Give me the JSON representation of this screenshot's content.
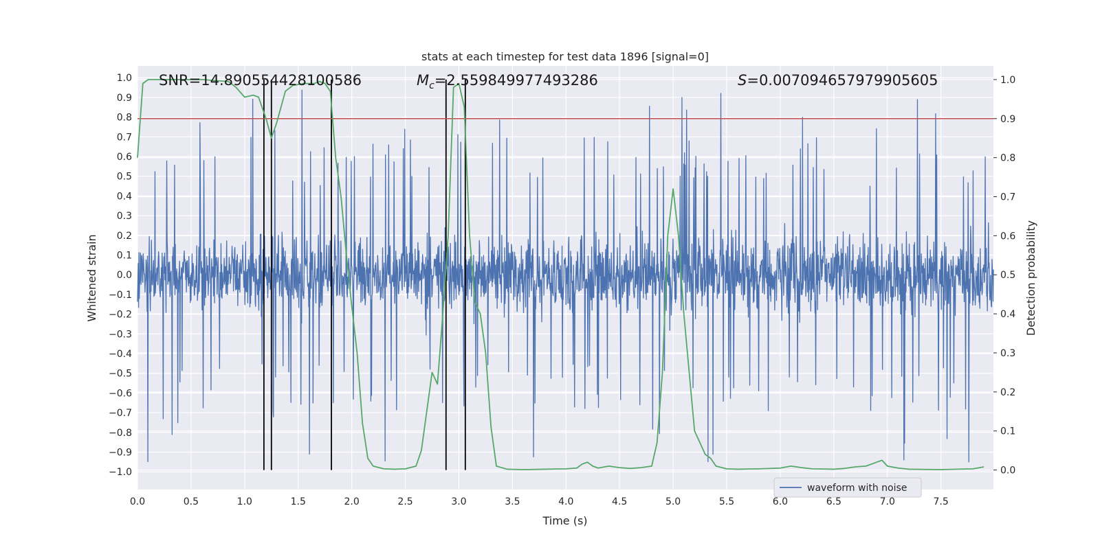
{
  "chart_data": {
    "type": "line",
    "title": "stats at each timestep for test data 1896 [signal=0]",
    "xlabel": "Time (s)",
    "ylabel_left": "Whitened strain",
    "ylabel_right": "Detection probability",
    "xlim": [
      0.0,
      7.99
    ],
    "ylim_left": [
      -1.09,
      1.06
    ],
    "ylim_right": [
      -0.05,
      1.035
    ],
    "x_ticks": [
      "0.0",
      "0.5",
      "1.0",
      "1.5",
      "2.0",
      "2.5",
      "3.0",
      "3.5",
      "4.0",
      "4.5",
      "5.0",
      "5.5",
      "6.0",
      "6.5",
      "7.0",
      "7.5"
    ],
    "y_ticks_left": [
      "1.0",
      "0.9",
      "0.8",
      "0.7",
      "0.6",
      "0.5",
      "0.4",
      "0.3",
      "0.2",
      "0.1",
      "0.0",
      "-0.1",
      "-0.2",
      "-0.3",
      "-0.4",
      "-0.5",
      "-0.6",
      "-0.7",
      "-0.8",
      "-0.9",
      "-1.0"
    ],
    "y_ticks_right": [
      "1.0",
      "0.9",
      "0.8",
      "0.7",
      "0.6",
      "0.5",
      "0.4",
      "0.3",
      "0.2",
      "0.1",
      "0.0"
    ],
    "annotations": {
      "snr": "SNR=14.890554428100586",
      "mc_symbol": "M",
      "mc_sub": "c",
      "mc_value": "=2.559849977493286",
      "s_symbol": "S",
      "s_value": "=0.007094657979905605"
    },
    "threshold": 0.9,
    "threshold_color": "#c44e52",
    "event_lines": [
      1.18,
      1.25,
      1.81,
      2.88,
      3.06
    ],
    "series": [
      {
        "name": "waveform with noise",
        "axis": "left",
        "color": "#4c72b0",
        "description": "noisy whitened strain, approx. band ±0.45 with spikes to ±0.95",
        "typical_amplitude": 0.45,
        "max_amplitude": 0.96
      },
      {
        "name": "detection probability",
        "axis": "right",
        "color": "#55a868",
        "x": [
          0.0,
          0.05,
          0.1,
          0.2,
          0.4,
          0.6,
          0.85,
          0.92,
          1.0,
          1.08,
          1.13,
          1.2,
          1.25,
          1.3,
          1.38,
          1.45,
          1.55,
          1.65,
          1.7,
          1.75,
          1.8,
          1.85,
          1.9,
          1.95,
          2.0,
          2.05,
          2.1,
          2.15,
          2.2,
          2.3,
          2.4,
          2.5,
          2.6,
          2.65,
          2.7,
          2.75,
          2.8,
          2.85,
          2.9,
          2.95,
          3.0,
          3.05,
          3.1,
          3.15,
          3.2,
          3.25,
          3.3,
          3.35,
          3.45,
          3.6,
          3.8,
          4.0,
          4.1,
          4.15,
          4.2,
          4.25,
          4.3,
          4.4,
          4.5,
          4.6,
          4.7,
          4.8,
          4.85,
          4.9,
          4.95,
          5.0,
          5.05,
          5.1,
          5.15,
          5.2,
          5.3,
          5.35,
          5.4,
          5.5,
          5.6,
          5.8,
          6.0,
          6.1,
          6.2,
          6.3,
          6.5,
          6.6,
          6.7,
          6.8,
          6.9,
          6.95,
          7.0,
          7.1,
          7.2,
          7.5,
          7.8,
          7.9
        ],
        "y": [
          0.8,
          0.99,
          1.0,
          1.0,
          1.0,
          1.0,
          0.995,
          0.98,
          0.955,
          0.96,
          0.955,
          0.9,
          0.85,
          0.89,
          0.97,
          0.985,
          0.99,
          0.99,
          0.995,
          0.99,
          0.97,
          0.8,
          0.7,
          0.55,
          0.42,
          0.3,
          0.12,
          0.03,
          0.01,
          0.003,
          0.002,
          0.003,
          0.01,
          0.05,
          0.15,
          0.25,
          0.22,
          0.4,
          0.6,
          0.98,
          0.99,
          0.93,
          0.6,
          0.43,
          0.4,
          0.3,
          0.11,
          0.01,
          0.002,
          0.001,
          0.002,
          0.003,
          0.005,
          0.015,
          0.02,
          0.01,
          0.005,
          0.01,
          0.006,
          0.004,
          0.006,
          0.01,
          0.07,
          0.25,
          0.6,
          0.72,
          0.6,
          0.4,
          0.25,
          0.1,
          0.04,
          0.03,
          0.01,
          0.003,
          0.002,
          0.003,
          0.005,
          0.01,
          0.006,
          0.003,
          0.002,
          0.004,
          0.008,
          0.01,
          0.02,
          0.025,
          0.01,
          0.005,
          0.002,
          0.001,
          0.003,
          0.008
        ]
      }
    ],
    "legend": {
      "label": "waveform with noise",
      "placement": "bottom-right"
    },
    "grid": true
  }
}
